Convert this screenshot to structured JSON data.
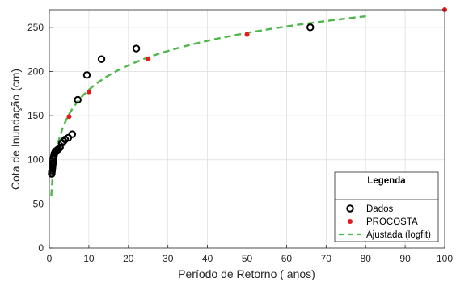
{
  "chart_data": {
    "type": "scatter",
    "xlabel": "Período de Retorno ( anos)",
    "ylabel": "Cota de Inundação (cm)",
    "xlim": [
      0,
      100
    ],
    "ylim": [
      0,
      270
    ],
    "xticks": [
      0,
      10,
      20,
      30,
      40,
      50,
      60,
      70,
      80,
      90,
      100
    ],
    "yticks": [
      0,
      50,
      100,
      150,
      200,
      250
    ],
    "grid": true,
    "legend": {
      "title": "Legenda",
      "placement": "bottom-right"
    },
    "series": [
      {
        "name": "Dados",
        "marker": "open-circle",
        "color": "#000000",
        "points": [
          [
            0.6,
            84
          ],
          [
            0.65,
            86
          ],
          [
            0.7,
            88
          ],
          [
            0.75,
            90
          ],
          [
            0.8,
            92
          ],
          [
            0.85,
            94
          ],
          [
            0.9,
            96
          ],
          [
            1.0,
            98
          ],
          [
            1.05,
            101
          ],
          [
            1.1,
            103
          ],
          [
            1.2,
            105
          ],
          [
            1.3,
            107
          ],
          [
            1.5,
            109
          ],
          [
            1.7,
            110
          ],
          [
            2.0,
            111
          ],
          [
            2.3,
            112
          ],
          [
            2.7,
            114
          ],
          [
            3.2,
            119
          ],
          [
            3.6,
            121
          ],
          [
            4.0,
            123
          ],
          [
            4.8,
            125
          ],
          [
            5.8,
            129
          ],
          [
            7.2,
            168
          ],
          [
            9.5,
            196
          ],
          [
            13.2,
            214
          ],
          [
            22.0,
            226
          ],
          [
            66.0,
            250
          ]
        ]
      },
      {
        "name": "PROCOSTA",
        "marker": "filled-dot",
        "color": "#e8191b",
        "points": [
          [
            5,
            149
          ],
          [
            10,
            177
          ],
          [
            25,
            214
          ],
          [
            50,
            242
          ],
          [
            100,
            270
          ]
        ]
      },
      {
        "name": "Ajustada (logfit)",
        "marker": "dashed-line",
        "color": "#4db848",
        "x_range": [
          0.5,
          81
        ],
        "fit": {
          "a": 87,
          "b": 40.06
        }
      }
    ]
  }
}
